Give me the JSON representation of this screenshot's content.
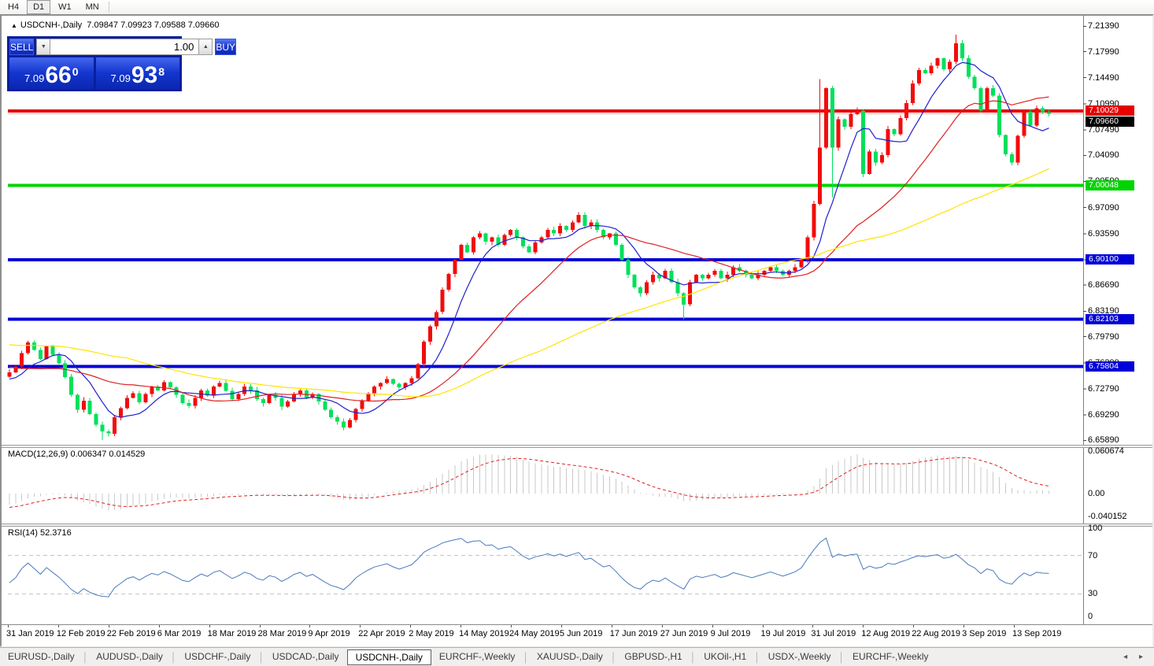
{
  "toolbar": {
    "timeframes": [
      {
        "label": "H4",
        "active": false
      },
      {
        "label": "D1",
        "active": true
      },
      {
        "label": "W1",
        "active": false
      },
      {
        "label": "MN",
        "active": false
      }
    ]
  },
  "chart": {
    "title": {
      "collapse_icon": "▲",
      "symbol": "USDCNH-,Daily",
      "ohlc": "7.09847 7.09923 7.09588 7.09660"
    }
  },
  "trade": {
    "sell_label": "SELL",
    "buy_label": "BUY",
    "volume": "1.00",
    "spinner_down": "▼",
    "spinner_up": "▲",
    "sell_price": {
      "small": "7.09",
      "big": "66",
      "sup": "0"
    },
    "buy_price": {
      "small": "7.09",
      "big": "93",
      "sup": "8"
    }
  },
  "chart_data": {
    "type": "candlestick",
    "symbol": "USDCNH-",
    "timeframe": "Daily",
    "y_axis": {
      "top_price": 7.2258,
      "bottom_price": 6.653
    },
    "price_axis_labels": [
      "7.21390",
      "7.17990",
      "7.14490",
      "7.10990",
      "7.07490",
      "7.04090",
      "7.00590",
      "6.97090",
      "6.93590",
      "6.90090",
      "6.86690",
      "6.83190",
      "6.79790",
      "6.76290",
      "6.72790",
      "6.69290",
      "6.65890"
    ],
    "hlines": [
      {
        "price": 7.10029,
        "color": "#e60000",
        "label": "7.10029",
        "width": 4
      },
      {
        "price": 7.00048,
        "color": "#00d400",
        "label": "7.00048",
        "width": 4
      },
      {
        "price": 6.901,
        "color": "#0000d8",
        "label": "6.90100",
        "width": 4
      },
      {
        "price": 6.82103,
        "color": "#0000d8",
        "label": "6.82103",
        "width": 4
      },
      {
        "price": 6.75804,
        "color": "#0000d8",
        "label": "6.75804",
        "width": 4
      }
    ],
    "bid": {
      "price": 7.0966,
      "label": "7.09660",
      "line_color": "#c8c8c8",
      "label_bg": "#000000"
    },
    "candle_colors": {
      "up": "#f20c0c",
      "down": "#00e05c"
    },
    "moving_averages": [
      {
        "period": 8,
        "color": "#2020cc"
      },
      {
        "period": 25,
        "color": "#e02020"
      },
      {
        "period": 60,
        "color": "#ffe400"
      }
    ],
    "seed_closes": [
      6.862,
      6.87,
      6.858,
      6.848,
      6.852,
      6.84,
      6.846,
      6.835,
      6.828,
      6.832,
      6.822,
      6.812,
      6.818,
      6.808,
      6.8,
      6.806,
      6.796,
      6.788,
      6.792,
      6.782,
      6.775,
      6.78,
      6.772,
      6.764,
      6.77,
      6.76,
      6.752,
      6.758,
      6.75,
      6.744,
      6.748,
      6.74,
      6.735,
      6.742,
      6.736,
      6.73,
      6.736,
      6.742,
      6.748,
      6.744
    ],
    "closes": [
      6.75,
      6.758,
      6.776,
      6.79,
      6.78,
      6.768,
      6.785,
      6.774,
      6.762,
      6.744,
      6.72,
      6.7,
      6.712,
      6.694,
      6.68,
      6.671,
      6.668,
      6.69,
      6.702,
      6.716,
      6.722,
      6.71,
      6.721,
      6.731,
      6.726,
      6.737,
      6.73,
      6.72,
      6.709,
      6.705,
      6.716,
      6.726,
      6.719,
      6.731,
      6.736,
      6.725,
      6.714,
      6.721,
      6.731,
      6.726,
      6.714,
      6.709,
      6.72,
      6.716,
      6.704,
      6.711,
      6.721,
      6.726,
      6.716,
      6.721,
      6.711,
      6.7,
      6.69,
      6.684,
      6.676,
      6.686,
      6.701,
      6.712,
      6.722,
      6.731,
      6.736,
      6.741,
      6.735,
      6.73,
      6.736,
      6.742,
      6.761,
      6.791,
      6.812,
      6.831,
      6.861,
      6.882,
      6.901,
      6.921,
      6.911,
      6.931,
      6.936,
      6.925,
      6.931,
      6.921,
      6.934,
      6.941,
      6.931,
      6.919,
      6.911,
      6.924,
      6.931,
      6.941,
      6.936,
      6.946,
      6.941,
      6.951,
      6.961,
      6.946,
      6.951,
      6.941,
      6.931,
      6.936,
      6.921,
      6.901,
      6.881,
      6.864,
      6.856,
      6.871,
      6.881,
      6.876,
      6.886,
      6.871,
      6.856,
      6.841,
      6.871,
      6.881,
      6.876,
      6.881,
      6.886,
      6.876,
      6.881,
      6.891,
      6.886,
      6.881,
      6.876,
      6.881,
      6.886,
      6.891,
      6.886,
      6.881,
      6.886,
      6.891,
      6.901,
      6.931,
      6.976,
      7.051,
      7.131,
      7.051,
      7.089,
      7.079,
      7.096,
      7.101,
      7.016,
      7.046,
      7.031,
      7.041,
      7.076,
      7.069,
      7.091,
      7.111,
      7.137,
      7.155,
      7.151,
      7.161,
      7.171,
      7.156,
      7.166,
      7.191,
      7.171,
      7.146,
      7.131,
      7.101,
      7.131,
      7.121,
      7.068,
      7.042,
      7.031,
      7.067,
      7.099,
      7.081,
      7.104,
      7.0985,
      7.0966
    ],
    "wick_overrides": {
      "15": {
        "l": 6.6595
      },
      "109": {
        "l": 6.8215
      },
      "131": {
        "h": 7.143
      },
      "133": {
        "l": 6.984
      },
      "153": {
        "h": 7.2025
      }
    },
    "macd": {
      "label": "MACD(12,26,9)",
      "values_text": "0.006347 0.014529",
      "fast": 12,
      "slow": 26,
      "signal": 9,
      "axis_labels": [
        "0.060674",
        "0.00",
        "-0.040152"
      ],
      "y_top": 0.0652,
      "y_bottom": -0.0427,
      "hist_color": "#c9c9c9",
      "signal_color": "#e02020"
    },
    "rsi": {
      "label": "RSI(14)",
      "value_text": "52.3716",
      "period": 14,
      "levels": [
        70,
        30
      ],
      "axis_labels": [
        "100",
        "70",
        "30",
        "0"
      ],
      "color": "#4b79bd",
      "level_color": "#c4c4c4"
    },
    "time_axis_labels": [
      "31 Jan 2019",
      "12 Feb 2019",
      "22 Feb 2019",
      "6 Mar 2019",
      "18 Mar 2019",
      "28 Mar 2019",
      "9 Apr 2019",
      "22 Apr 2019",
      "2 May 2019",
      "14 May 2019",
      "24 May 2019",
      "5 Jun 2019",
      "17 Jun 2019",
      "27 Jun 2019",
      "9 Jul 2019",
      "19 Jul 2019",
      "31 Jul 2019",
      "12 Aug 2019",
      "22 Aug 2019",
      "3 Sep 2019",
      "13 Sep 2019"
    ]
  },
  "tab_bar": {
    "nav_left": "◂",
    "nav_right": "▸",
    "tabs": [
      {
        "label": "EURUSD-,Daily",
        "active": false
      },
      {
        "label": "AUDUSD-,Daily",
        "active": false
      },
      {
        "label": "USDCHF-,Daily",
        "active": false
      },
      {
        "label": "USDCAD-,Daily",
        "active": false
      },
      {
        "label": "USDCNH-,Daily",
        "active": true
      },
      {
        "label": "EURCHF-,Weekly",
        "active": false
      },
      {
        "label": "XAUUSD-,Daily",
        "active": false
      },
      {
        "label": "GBPUSD-,H1",
        "active": false
      },
      {
        "label": "UKOil-,H1",
        "active": false
      },
      {
        "label": "USDX-,Weekly",
        "active": false
      },
      {
        "label": "EURCHF-,Weekly",
        "active": false
      }
    ]
  }
}
